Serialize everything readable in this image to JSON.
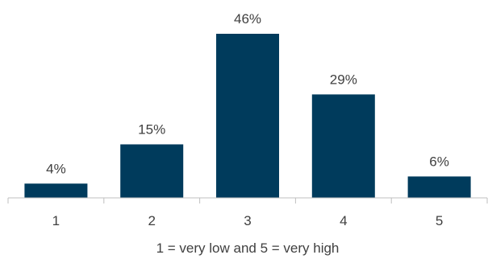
{
  "chart_data": {
    "type": "bar",
    "categories": [
      "1",
      "2",
      "3",
      "4",
      "5"
    ],
    "values": [
      4,
      15,
      46,
      29,
      6
    ],
    "data_labels": [
      "4%",
      "15%",
      "46%",
      "29%",
      "6%"
    ],
    "title": "",
    "xlabel": "1 = very low and 5 = very high",
    "ylabel": "",
    "ylim": [
      0,
      46
    ],
    "grid": false,
    "legend": "none",
    "colors": {
      "bar": "#003b5c",
      "axis": "#bfbfbf",
      "text": "#404040"
    }
  }
}
